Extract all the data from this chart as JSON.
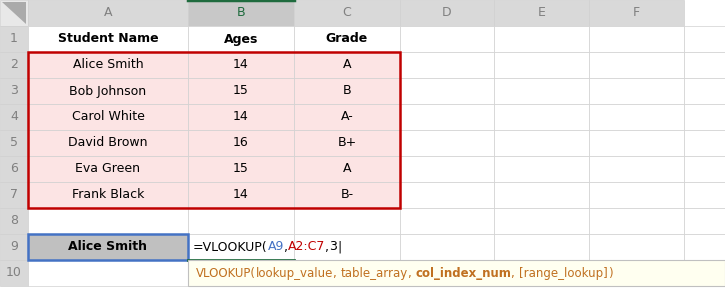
{
  "col_labels": [
    "A",
    "B",
    "C",
    "D",
    "E",
    "F"
  ],
  "row_labels": [
    "1",
    "2",
    "3",
    "4",
    "5",
    "6",
    "7",
    "8",
    "9",
    "10"
  ],
  "header_row": [
    "Student Name",
    "Ages",
    "Grade"
  ],
  "data_rows": [
    [
      "Alice Smith",
      "14",
      "A"
    ],
    [
      "Bob Johnson",
      "15",
      "B"
    ],
    [
      "Carol White",
      "14",
      "A-"
    ],
    [
      "David Brown",
      "16",
      "B+"
    ],
    [
      "Eva Green",
      "15",
      "A"
    ],
    [
      "Frank Black",
      "14",
      "B-"
    ]
  ],
  "formula_parts": [
    {
      "text": "=VLOOKUP(",
      "color": "#000000"
    },
    {
      "text": "A9",
      "color": "#4472c4"
    },
    {
      "text": ",",
      "color": "#000000"
    },
    {
      "text": "A2:C7",
      "color": "#c00000"
    },
    {
      "text": ",",
      "color": "#000000"
    },
    {
      "text": "3",
      "color": "#000000"
    },
    {
      "text": "|",
      "color": "#000000"
    }
  ],
  "tooltip_parts": [
    {
      "text": "VLOOKUP(",
      "bold": false
    },
    {
      "text": "lookup_value",
      "bold": false
    },
    {
      "text": ", ",
      "bold": false
    },
    {
      "text": "table_array",
      "bold": false
    },
    {
      "text": ", ",
      "bold": false
    },
    {
      "text": "col_index_num",
      "bold": true
    },
    {
      "text": ", ",
      "bold": false
    },
    {
      "text": "[range_lookup]",
      "bold": false
    },
    {
      "text": ")",
      "bold": false
    }
  ],
  "tooltip_color": "#c07020",
  "header_bg": "#d9d9d9",
  "col_B_header_bg": "#c8c8c8",
  "col_B_header_color": "#1f6b3e",
  "col_B_top_line_color": "#1f6b3e",
  "row_num_color": "#808080",
  "col_label_color": "#808080",
  "data_bg_pink": "#fce4e4",
  "data_border_red": "#c00000",
  "cell_border": "#d0d0d0",
  "cell_A9_bg": "#c0c0c0",
  "cell_A9_border": "#4472c4",
  "cell_B9_bottom_line": "#1f6b3e",
  "white": "#ffffff",
  "black": "#000000",
  "corner_bg": "#e8e8e8"
}
